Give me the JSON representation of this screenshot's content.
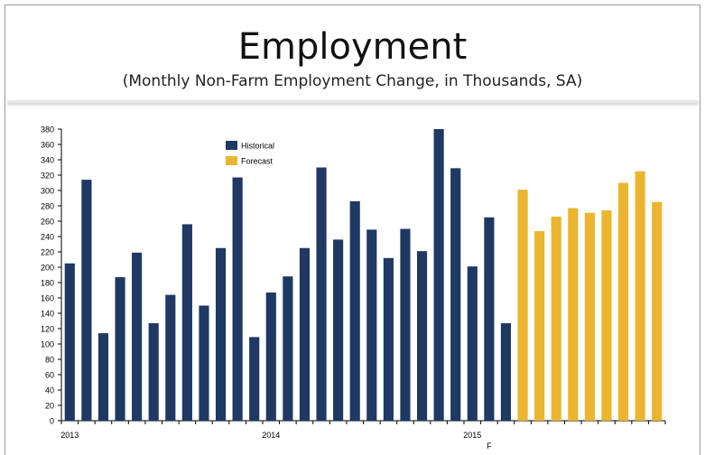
{
  "title": "Employment",
  "subtitle": "(Monthly Non-Farm Employment Change,  in Thousands, SA)",
  "colors": {
    "historical": "#1f3864",
    "forecast": "#ebb52f"
  },
  "chart_data": {
    "type": "bar",
    "title": "",
    "xlabel": "",
    "ylabel": "",
    "ylim": [
      0,
      380
    ],
    "yticks": [
      0,
      20,
      40,
      60,
      80,
      100,
      120,
      140,
      160,
      180,
      200,
      220,
      240,
      260,
      280,
      300,
      320,
      340,
      360,
      380
    ],
    "x_tick_labels": [
      "2013",
      "2014",
      "2015",
      "F"
    ],
    "legend": {
      "placement": "top-left",
      "entries": [
        "Historical",
        "Forecast"
      ]
    },
    "grid": false,
    "series": [
      {
        "name": "Historical",
        "values": [
          205,
          314,
          114,
          187,
          219,
          127,
          164,
          256,
          150,
          225,
          317,
          109,
          167,
          188,
          225,
          330,
          236,
          286,
          249,
          212,
          250,
          221,
          380,
          329,
          201,
          265,
          127
        ]
      },
      {
        "name": "Forecast",
        "values": [
          301,
          247,
          266,
          277,
          271,
          274,
          310,
          325,
          285
        ]
      }
    ]
  }
}
